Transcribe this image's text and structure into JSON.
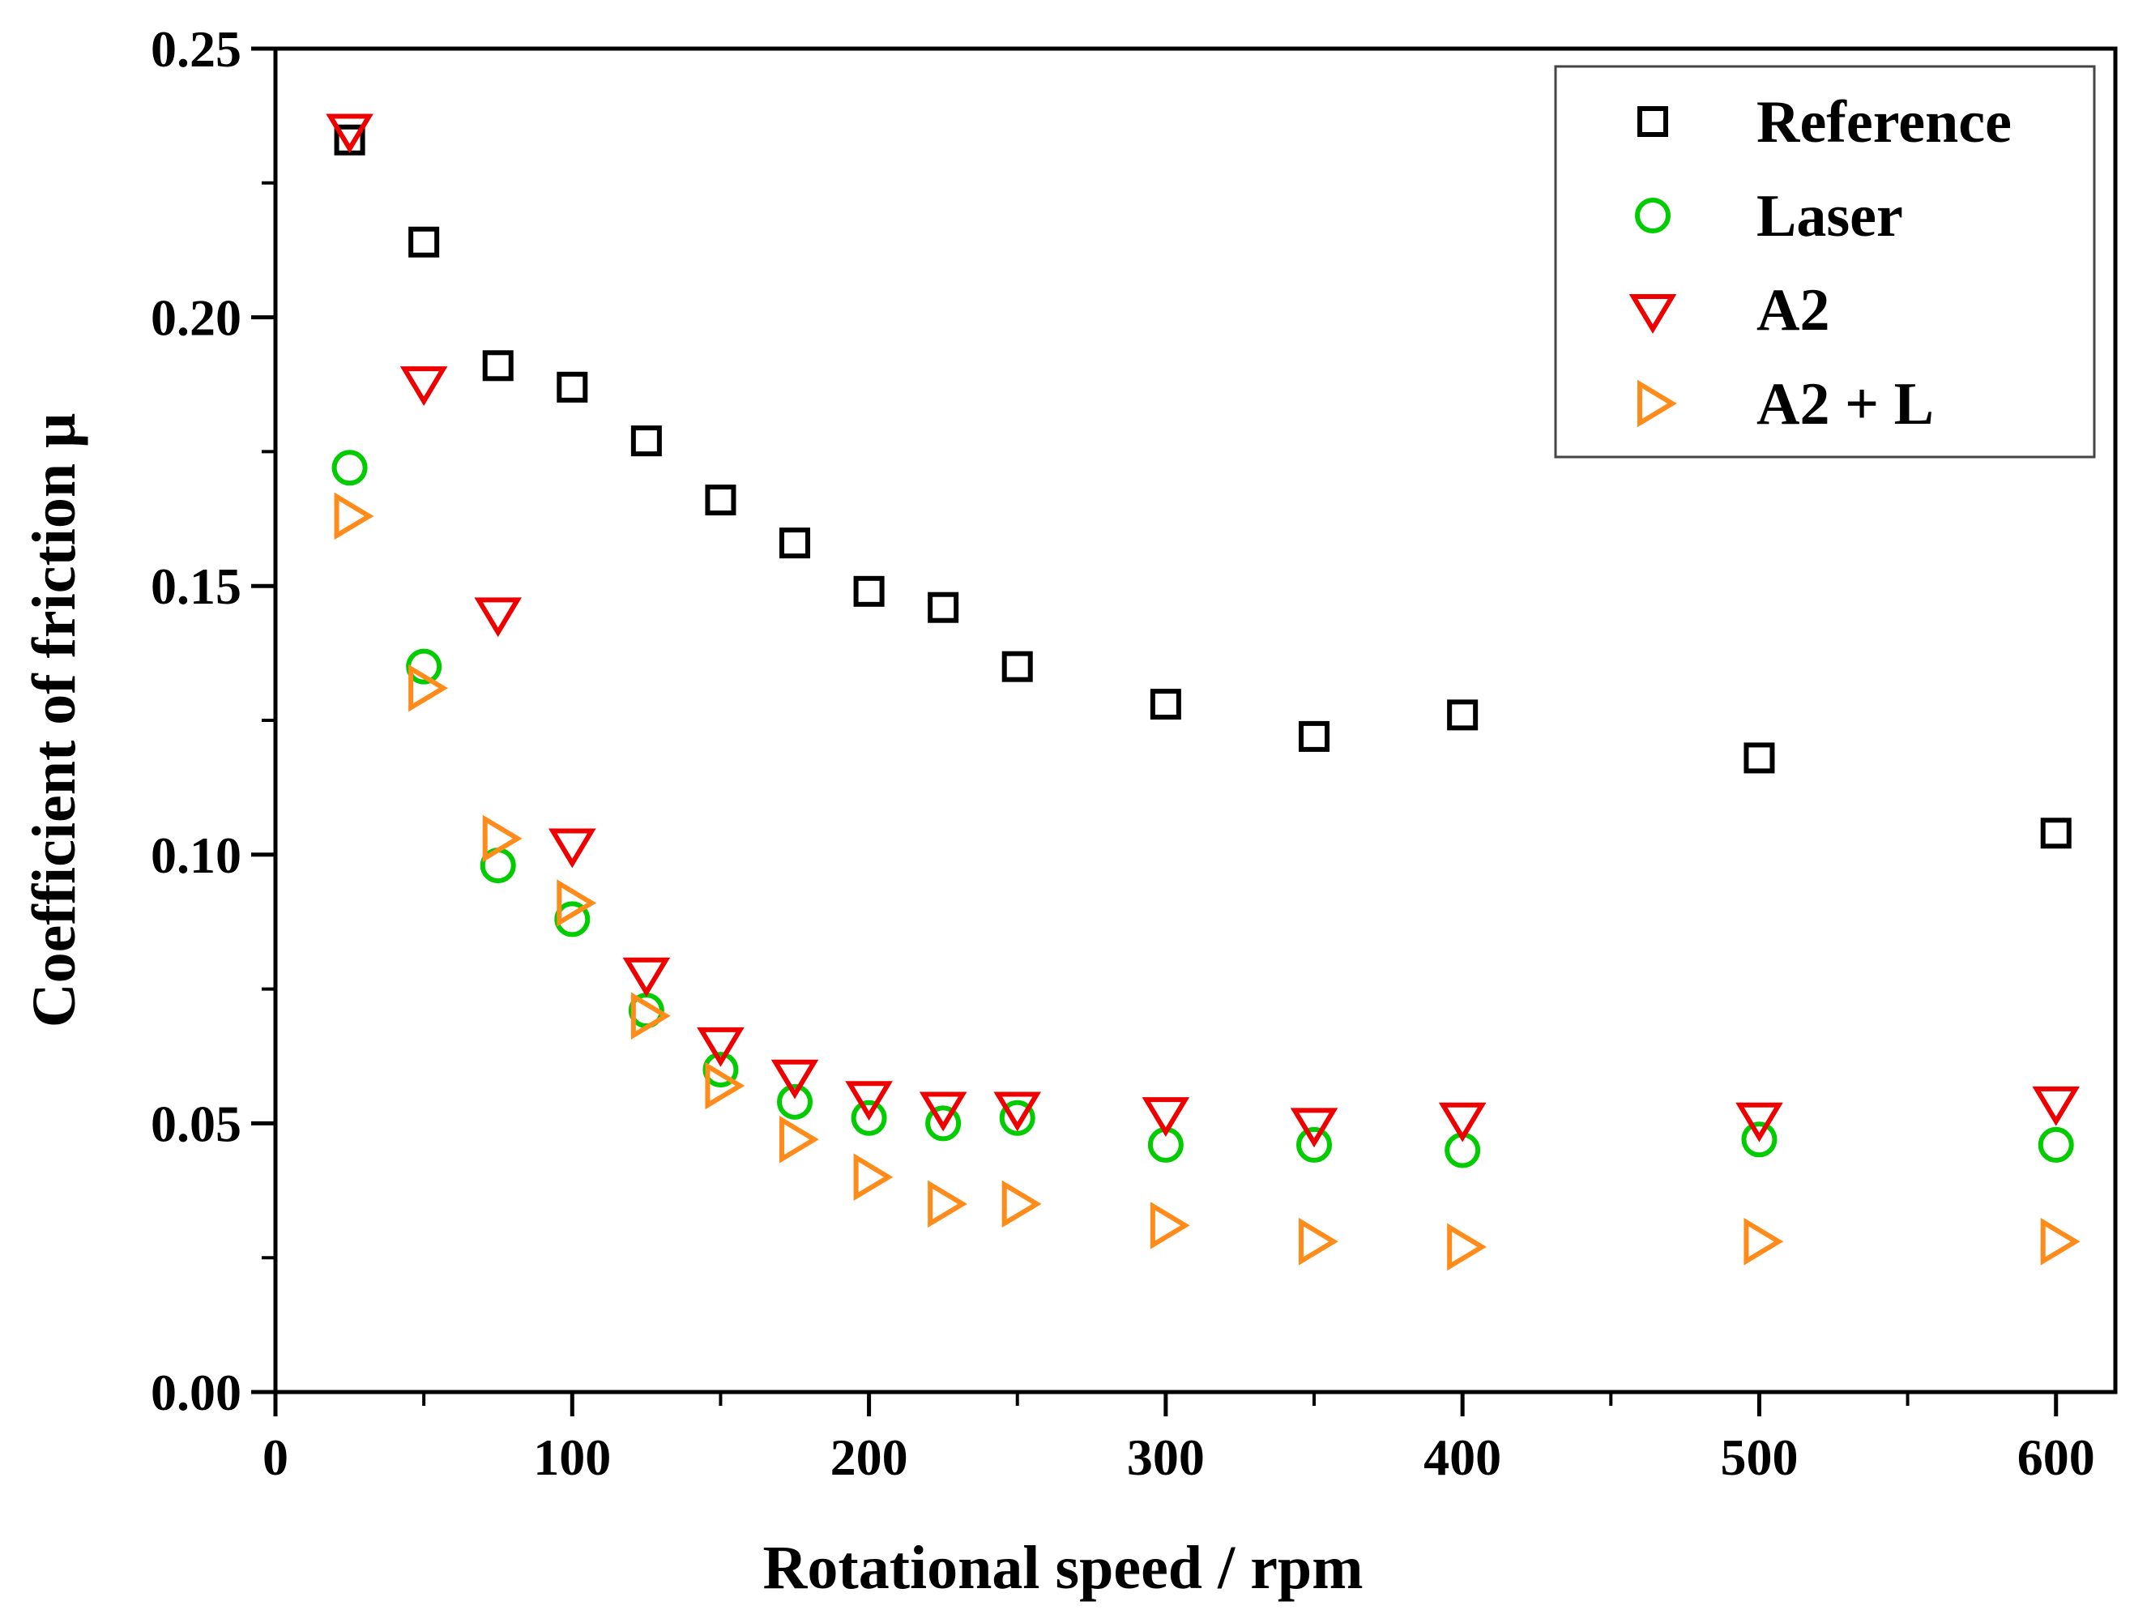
{
  "chart_data": {
    "type": "scatter",
    "title": "",
    "xlabel": "Rotational speed / rpm",
    "ylabel": "Coefficient of friction μ",
    "xlim": [
      0,
      620
    ],
    "ylim": [
      0,
      0.25
    ],
    "xticks": [
      0,
      100,
      200,
      300,
      400,
      500,
      600
    ],
    "xtick_labels": [
      "0",
      "100",
      "200",
      "300",
      "400",
      "500",
      "600"
    ],
    "yticks": [
      0,
      0.05,
      0.1,
      0.15,
      0.2,
      0.25
    ],
    "ytick_labels": [
      "0.00",
      "0.05",
      "0.10",
      "0.15",
      "0.20",
      "0.25"
    ],
    "grid": false,
    "legend_position": "top-right",
    "series": [
      {
        "name": "Reference",
        "marker": "square",
        "color": "#000000",
        "x": [
          25,
          50,
          75,
          100,
          125,
          150,
          175,
          200,
          225,
          250,
          300,
          350,
          400,
          500,
          600
        ],
        "y": [
          0.233,
          0.214,
          0.191,
          0.187,
          0.177,
          0.166,
          0.158,
          0.149,
          0.146,
          0.135,
          0.128,
          0.122,
          0.126,
          0.118,
          0.104
        ]
      },
      {
        "name": "Laser",
        "marker": "circle",
        "color": "#00cc00",
        "x": [
          25,
          50,
          75,
          100,
          125,
          150,
          175,
          200,
          225,
          250,
          300,
          350,
          400,
          500,
          600
        ],
        "y": [
          0.172,
          0.135,
          0.098,
          0.088,
          0.071,
          0.06,
          0.054,
          0.051,
          0.05,
          0.051,
          0.046,
          0.046,
          0.045,
          0.047,
          0.046
        ]
      },
      {
        "name": "A2",
        "marker": "triangle-down",
        "color": "#ee0000",
        "x": [
          25,
          50,
          75,
          100,
          125,
          150,
          175,
          200,
          225,
          250,
          300,
          350,
          400,
          500,
          600
        ],
        "y": [
          0.235,
          0.188,
          0.145,
          0.102,
          0.078,
          0.065,
          0.059,
          0.055,
          0.053,
          0.053,
          0.052,
          0.05,
          0.051,
          0.051,
          0.054
        ]
      },
      {
        "name": "A2 + L",
        "marker": "triangle-right",
        "color": "#ff8c1a",
        "x": [
          25,
          50,
          75,
          100,
          125,
          150,
          175,
          200,
          225,
          250,
          300,
          350,
          400,
          500,
          600
        ],
        "y": [
          0.163,
          0.131,
          0.103,
          0.091,
          0.07,
          0.057,
          0.047,
          0.04,
          0.035,
          0.035,
          0.031,
          0.028,
          0.027,
          0.028,
          0.028
        ]
      }
    ]
  }
}
